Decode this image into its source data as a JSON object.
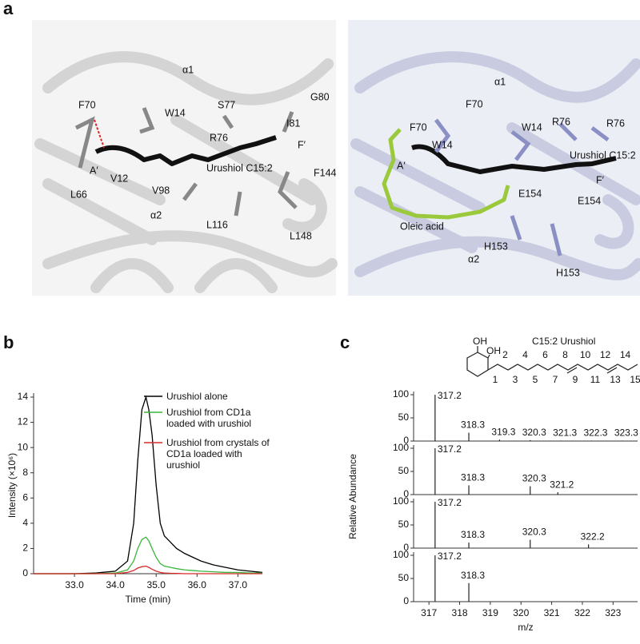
{
  "panel_labels": [
    "a",
    "b",
    "c"
  ],
  "structures": [
    {
      "labels": [
        "α1",
        "F70",
        "W14",
        "S77",
        "G80",
        "I81",
        "R76",
        "F′",
        "L66",
        "A′",
        "V12",
        "Urushiol C15:2",
        "V98",
        "F144",
        "L116",
        "L148",
        "α2"
      ]
    },
    {
      "labels": [
        "α1",
        "F70",
        "F70",
        "W14",
        "W14",
        "R76",
        "R76",
        "Urushiol C15:2",
        "F′",
        "A′",
        "E154",
        "E154",
        "Oleic acid",
        "α2",
        "H153",
        "H153"
      ]
    }
  ],
  "molecule": {
    "title": "C15:2 Urushiol",
    "groups": [
      "OH",
      "OH"
    ],
    "carbon_numbers": [
      1,
      2,
      3,
      4,
      5,
      6,
      7,
      8,
      9,
      10,
      11,
      12,
      13,
      14,
      15
    ]
  },
  "chart_data": [
    {
      "type": "line",
      "xlabel": "Time (min)",
      "ylabel": "Intensity (×10⁶)",
      "xlim": [
        32.0,
        37.6
      ],
      "ylim": [
        0,
        14
      ],
      "xticks": [
        {
          "value": 33,
          "label": "33.0"
        },
        {
          "value": 34,
          "label": "34.0"
        },
        {
          "value": 35,
          "label": "35.0"
        },
        {
          "value": 36,
          "label": "36.0"
        },
        {
          "value": 37,
          "label": "37.0"
        }
      ],
      "yticks": [
        0,
        2,
        4,
        6,
        8,
        10,
        12,
        14
      ],
      "x": [
        32.0,
        32.5,
        33.0,
        33.5,
        34.0,
        34.3,
        34.45,
        34.55,
        34.65,
        34.75,
        34.82,
        34.9,
        35.0,
        35.1,
        35.2,
        35.35,
        35.5,
        35.7,
        35.9,
        36.1,
        36.4,
        36.7,
        37.0,
        37.3,
        37.6
      ],
      "series": [
        {
          "name": "Urushiol alone",
          "color": "#000000",
          "values": [
            0,
            0,
            0,
            0.05,
            0.2,
            1,
            4,
            9,
            13,
            14,
            13,
            11,
            7,
            4,
            3,
            2.5,
            2,
            1.6,
            1.3,
            1,
            0.7,
            0.5,
            0.3,
            0.2,
            0.1
          ]
        },
        {
          "name": "Urushiol from CD1a loaded with urushiol",
          "color": "#3cb53c",
          "values": [
            0,
            0,
            0,
            0,
            0.05,
            0.3,
            1,
            2,
            2.7,
            2.9,
            2.6,
            2,
            1.3,
            0.8,
            0.6,
            0.5,
            0.4,
            0.3,
            0.25,
            0.2,
            0.15,
            0.1,
            0.1,
            0.05,
            0.05
          ]
        },
        {
          "name": "Urushiol from crystals of CD1a loaded with urushiol",
          "color": "#d62b2b",
          "values": [
            0,
            0,
            0,
            0,
            0,
            0.1,
            0.25,
            0.45,
            0.55,
            0.6,
            0.5,
            0.35,
            0.2,
            0.1,
            0.05,
            0.03,
            0.02,
            0,
            0,
            0,
            0,
            0,
            0,
            0,
            0
          ]
        }
      ]
    },
    {
      "type": "spectrum",
      "xlabel": "m/z",
      "ylabel": "Relative Abundance",
      "xlim": [
        316.5,
        323.8
      ],
      "xticks": [
        317,
        318,
        319,
        320,
        321,
        322,
        323
      ],
      "ylim": [
        0,
        100
      ],
      "yticks": [
        0,
        50,
        100
      ],
      "panels": [
        {
          "x": [
            317.2,
            318.3,
            319.3,
            320.3,
            321.3,
            322.3,
            323.3
          ],
          "values": [
            100,
            18,
            3,
            2,
            1,
            1,
            1
          ]
        },
        {
          "x": [
            317.2,
            318.3,
            320.3,
            321.2
          ],
          "values": [
            100,
            20,
            18,
            5
          ]
        },
        {
          "x": [
            317.2,
            318.3,
            320.3,
            322.2
          ],
          "values": [
            100,
            12,
            18,
            8
          ]
        },
        {
          "x": [
            317.2,
            318.3
          ],
          "values": [
            100,
            40
          ]
        }
      ]
    }
  ]
}
